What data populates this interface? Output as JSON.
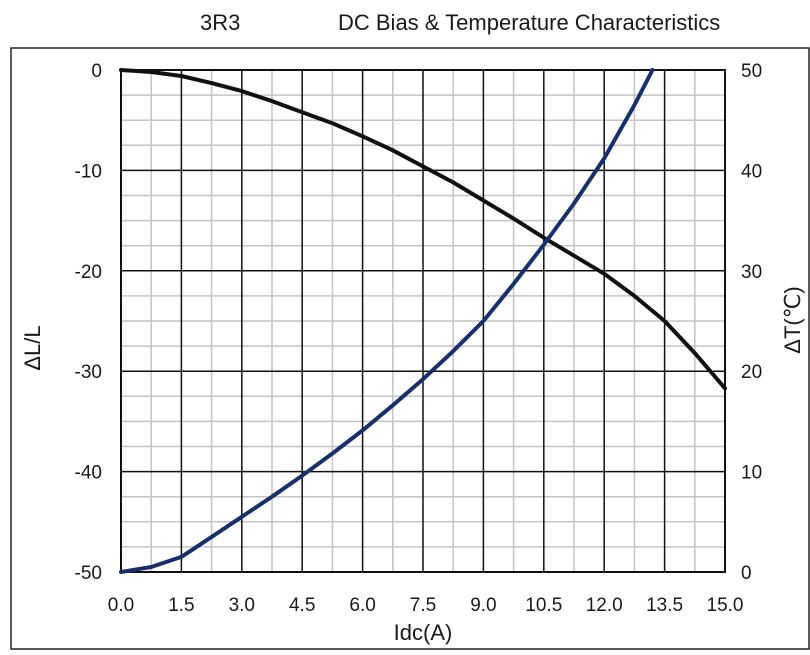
{
  "chart_data": {
    "type": "line",
    "part_label": "3R3",
    "title": "DC Bias & Temperature Characteristics",
    "xlabel": "Idc(A)",
    "ylabel_left": "ΔL/L",
    "ylabel_right": "ΔT(℃)",
    "xlim": [
      0,
      15
    ],
    "ylim_left": [
      -50,
      0
    ],
    "ylim_right": [
      0,
      50
    ],
    "x_ticks": [
      "0.0",
      "1.5",
      "3.0",
      "4.5",
      "6.0",
      "7.5",
      "9.0",
      "10.5",
      "12.0",
      "13.5",
      "15.0"
    ],
    "y_left_ticks": [
      "0",
      "-10",
      "-20",
      "-30",
      "-40",
      "-50"
    ],
    "y_right_ticks": [
      "50",
      "40",
      "30",
      "20",
      "10",
      "0"
    ],
    "grid": true,
    "series": [
      {
        "axis": "left",
        "color": "#111111",
        "x": [
          0,
          0.75,
          1.5,
          2.25,
          3.0,
          3.75,
          4.5,
          5.25,
          6.0,
          6.75,
          7.5,
          8.25,
          9.0,
          9.75,
          10.5,
          11.25,
          12.0,
          12.75,
          13.5,
          14.25,
          15.0
        ],
        "y": [
          0,
          -0.2,
          -0.6,
          -1.3,
          -2.1,
          -3.1,
          -4.2,
          -5.3,
          -6.6,
          -8.0,
          -9.6,
          -11.2,
          -13.0,
          -14.8,
          -16.7,
          -18.5,
          -20.3,
          -22.5,
          -25.0,
          -28.2,
          -31.7
        ]
      },
      {
        "axis": "right",
        "color": "#17306b",
        "x": [
          0,
          0.75,
          1.5,
          2.25,
          3.0,
          3.75,
          4.5,
          5.25,
          6.0,
          6.75,
          7.5,
          8.25,
          9.0,
          9.75,
          10.5,
          11.25,
          12.0,
          12.75,
          13.2
        ],
        "y": [
          0,
          0.5,
          1.5,
          3.5,
          5.5,
          7.5,
          9.6,
          11.8,
          14.1,
          16.6,
          19.2,
          22.0,
          25.0,
          28.7,
          32.6,
          36.7,
          41.2,
          46.5,
          50.0
        ]
      }
    ]
  }
}
